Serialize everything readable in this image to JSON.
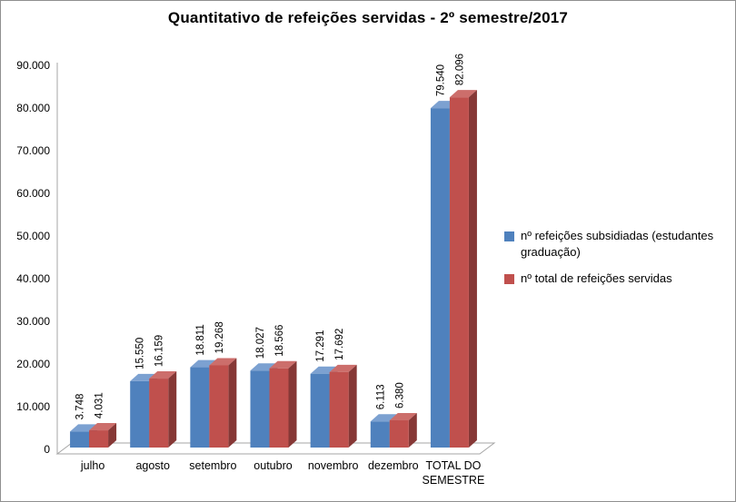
{
  "window": {
    "background": "#FFFFFF",
    "border_color": "#8F8F8F"
  },
  "chart_data": {
    "type": "bar",
    "style": "3d-clustered-column",
    "title": "Quantitativo de refeições servidas - 2º semestre/2017",
    "categories": [
      "julho",
      "agosto",
      "setembro",
      "outubro",
      "novembro",
      "dezembro",
      "TOTAL DO\nSEMESTRE"
    ],
    "series": [
      {
        "name": "nº refeições subsidiadas (estudantes graduação)",
        "color": "#4F81BD",
        "color_top": "#7CA1D1",
        "color_side": "#38598A",
        "values": [
          3748,
          15550,
          18811,
          18027,
          17291,
          6113,
          79540
        ],
        "labels": [
          "3.748",
          "15.550",
          "18.811",
          "18.027",
          "17.291",
          "6.113",
          "79.540"
        ]
      },
      {
        "name": "nº total de refeições servidas",
        "color": "#C0504D",
        "color_top": "#CC6E6B",
        "color_side": "#86namespace3836",
        "values": [
          4031,
          16159,
          19268,
          18566,
          17692,
          6380,
          82096
        ],
        "labels": [
          "4.031",
          "16.159",
          "19.268",
          "18.566",
          "17.692",
          "6.380",
          "82.096"
        ]
      }
    ],
    "ylim": [
      0,
      90000
    ],
    "ytick_step": 10000,
    "yticks": [
      "0",
      "10.000",
      "20.000",
      "30.000",
      "40.000",
      "50.000",
      "60.000",
      "70.000",
      "80.000",
      "90.000"
    ],
    "grid": false,
    "legend_position": "right",
    "axis_color": "#A6A6A6",
    "text_color": "#000000"
  }
}
